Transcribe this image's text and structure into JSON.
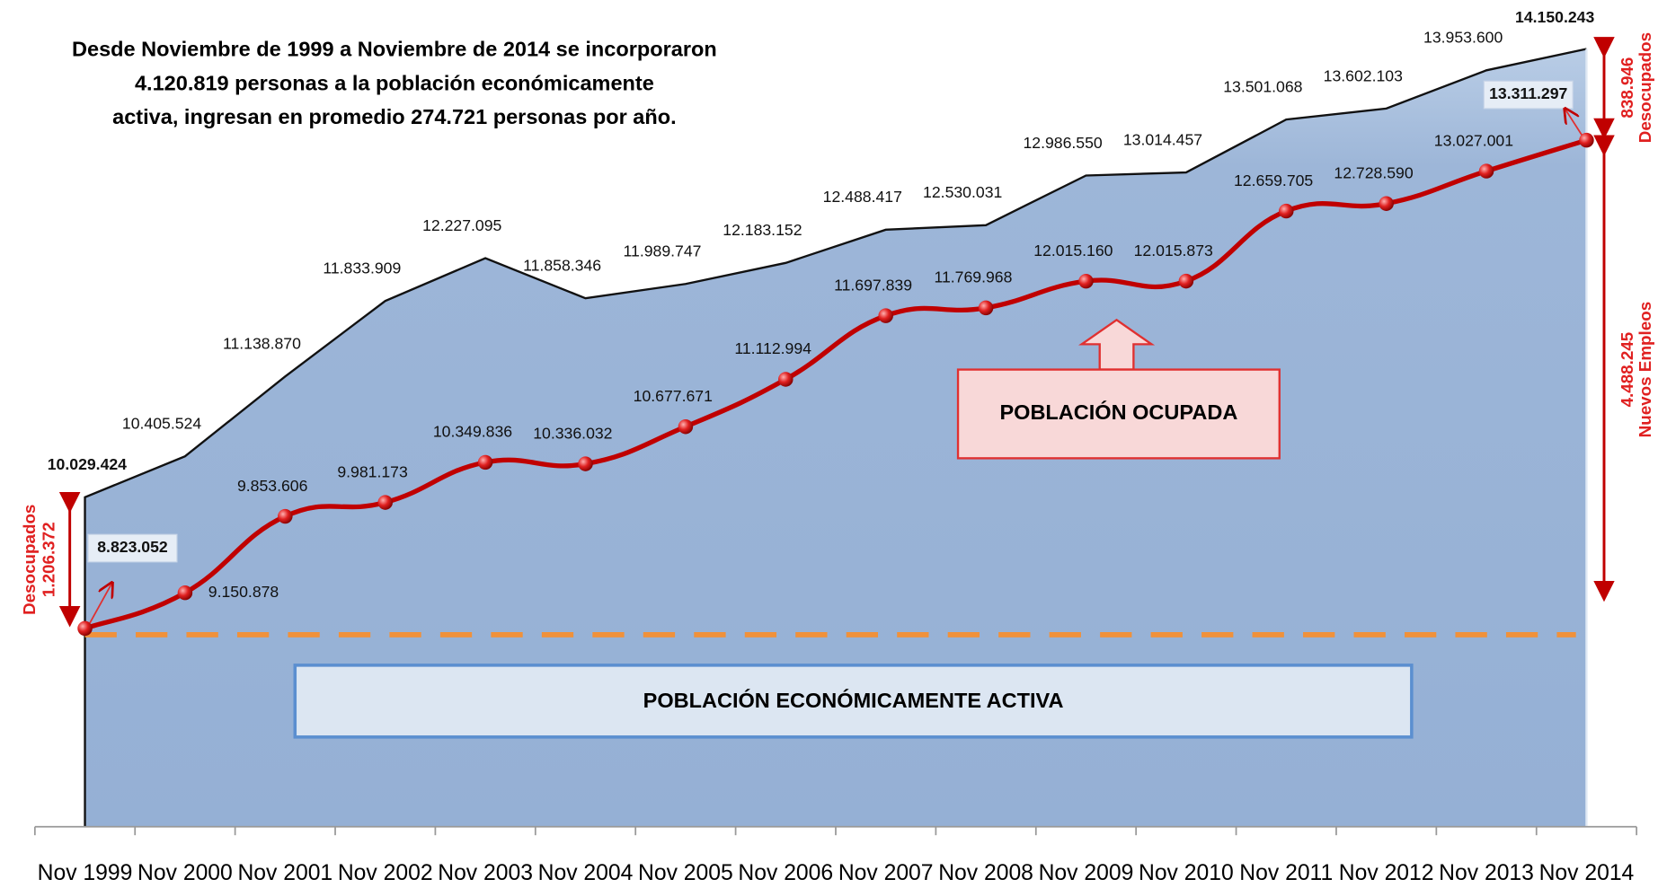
{
  "chart_data": {
    "type": "area_line",
    "title": [
      "Desde Noviembre de 1999 a Noviembre de 2014 se incorporaron",
      "4.120.819 personas a la población económicamente",
      "activa, ingresan en promedio  274.721 personas por año."
    ],
    "categories": [
      "Nov 1999",
      "Nov 2000",
      "Nov 2001",
      "Nov 2002",
      "Nov 2003",
      "Nov 2004",
      "Nov 2005",
      "Nov 2006",
      "Nov 2007",
      "Nov 2008",
      "Nov 2009",
      "Nov 2010",
      "Nov 2011",
      "Nov 2012",
      "Nov 2013",
      "Nov 2014"
    ],
    "series": [
      {
        "name": "POBLACIÓN ECONÓMICAMENTE ACTIVA",
        "color": "#95b3d7",
        "values": [
          10029424,
          10405524,
          11138870,
          11833909,
          12227095,
          11858346,
          11989747,
          12183152,
          12488417,
          12530031,
          12986550,
          13014457,
          13501068,
          13602103,
          13953600,
          14150243
        ],
        "value_labels": [
          "10.029.424",
          "10.405.524",
          "11.138.870",
          "11.833.909",
          "12.227.095",
          "11.858.346",
          "11.989.747",
          "12.183.152",
          "12.488.417",
          "12.530.031",
          "12.986.550",
          "13.014.457",
          "13.501.068",
          "13.602.103",
          "13.953.600",
          "14.150.243"
        ]
      },
      {
        "name": "POBLACIÓN OCUPADA",
        "color": "#c00000",
        "values": [
          8823052,
          9150878,
          9853606,
          9981173,
          10349836,
          10336032,
          10677671,
          11112994,
          11697839,
          11769968,
          12015160,
          12015873,
          12659705,
          12728590,
          13027001,
          13311297
        ],
        "value_labels": [
          "8.823.052",
          "9.150.878",
          "9.853.606",
          "9.981.173",
          "10.349.836",
          "10.336.032",
          "10.677.671",
          "11.112.994",
          "11.697.839",
          "11.769.968",
          "12.015.160",
          "12.015.873",
          "12.659.705",
          "12.728.590",
          "13.027.001",
          "13.311.297"
        ]
      }
    ],
    "ylim": [
      7000000,
      14600000
    ],
    "annotations": {
      "left": [
        "Desocupados",
        "1.206.372"
      ],
      "right_top": [
        "838.946",
        "Desocupados"
      ],
      "right_bottom": [
        "4.488.245",
        "Nuevos Empleos"
      ]
    }
  }
}
